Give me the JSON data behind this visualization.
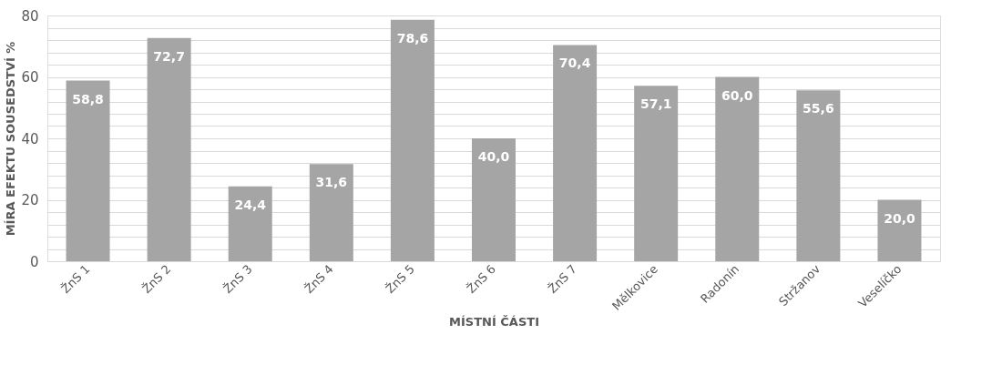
{
  "chart_data": {
    "type": "bar",
    "xlabel": "MÍSTNÍ ČÁSTI",
    "ylabel": "MÍRA EFEKTU SOUSEDSTVÍ %",
    "categories": [
      "ŽnS 1",
      "ŽnS 2",
      "ŽnS 3",
      "ŽnS 4",
      "ŽnS 5",
      "ŽnS 6",
      "ŽnS 7",
      "Mělkovice",
      "Radonín",
      "Stržanov",
      "Veselíčko"
    ],
    "values": [
      58.8,
      72.7,
      24.4,
      31.6,
      78.6,
      40.0,
      70.4,
      57.1,
      60.0,
      55.6,
      20.0
    ],
    "value_labels": [
      "58,8",
      "72,7",
      "24,4",
      "31,6",
      "78,6",
      "40,0",
      "70,4",
      "57,1",
      "60,0",
      "55,6",
      "20,0"
    ],
    "color": "#a5a5a5",
    "ylim": [
      0,
      80
    ],
    "yticks": [
      0,
      {
        "value": 4,
        "label": null
      },
      {
        "value": 8,
        "label": null
      },
      {
        "value": 12,
        "label": null
      },
      {
        "value": 16,
        "label": null
      },
      20,
      {
        "value": 24,
        "label": null
      },
      {
        "value": 28,
        "label": null
      },
      {
        "value": 32,
        "label": null
      },
      {
        "value": 36,
        "label": null
      },
      40,
      {
        "value": 44,
        "label": null
      },
      {
        "value": 48,
        "label": null
      },
      {
        "value": 52,
        "label": null
      },
      {
        "value": 56,
        "label": null
      },
      60,
      {
        "value": 64,
        "label": null
      },
      {
        "value": 68,
        "label": null
      },
      {
        "value": 72,
        "label": null
      },
      {
        "value": 76,
        "label": null
      },
      80
    ],
    "grid": "y"
  }
}
